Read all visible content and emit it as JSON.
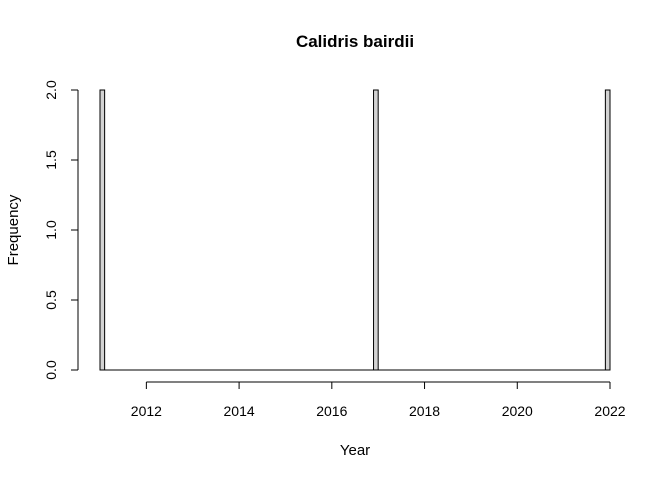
{
  "chart_data": {
    "type": "bar",
    "title": "Calidris bairdii",
    "xlabel": "Year",
    "ylabel": "Frequency",
    "bin_width": 0.1,
    "xlim": [
      2011.0,
      2022.0
    ],
    "ylim": [
      0,
      2
    ],
    "x_ticks": [
      2012,
      2014,
      2016,
      2018,
      2020,
      2022
    ],
    "y_ticks": [
      "0.0",
      "0.5",
      "1.0",
      "1.5",
      "2.0"
    ],
    "bars": [
      {
        "x_start": 2011.0,
        "x_end": 2011.1,
        "value": 2
      },
      {
        "x_start": 2016.9,
        "x_end": 2017.0,
        "value": 2
      },
      {
        "x_start": 2021.9,
        "x_end": 2022.0,
        "value": 2
      }
    ],
    "bar_fill": "#d3d3d3",
    "bar_stroke": "#000000"
  }
}
